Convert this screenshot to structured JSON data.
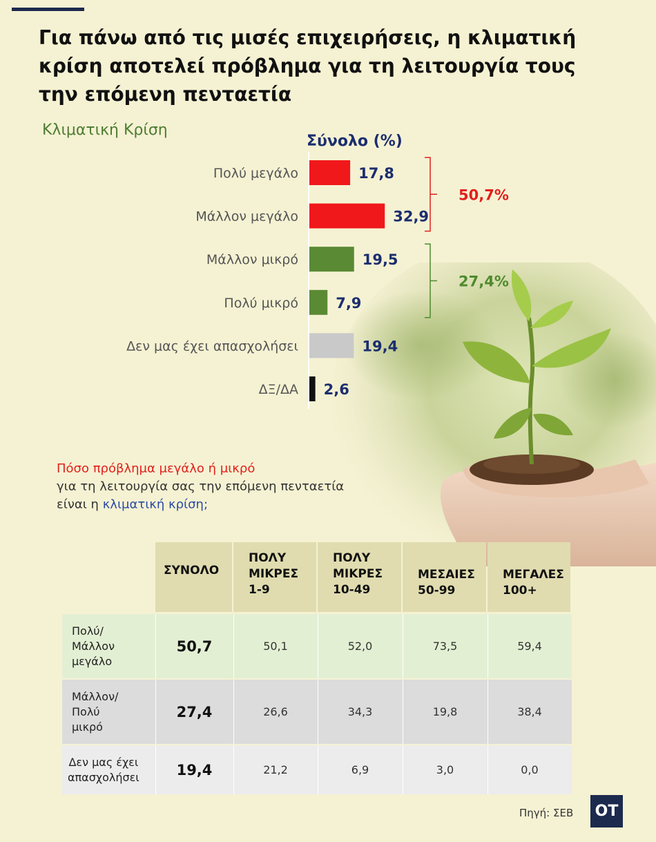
{
  "headline": "Για πάνω από τις μισές επιχειρήσεις, η κλιματική κρίση αποτελεί πρόβλημα για τη λειτουργία τους την επόμενη πενταετία",
  "section_title": "Κλιματική Κρίση",
  "total_title": "Σύνολο  (%)",
  "chart_data": {
    "type": "bar",
    "orientation": "horizontal",
    "title": "Σύνολο  (%)",
    "categories": [
      "Πολύ μεγάλο",
      "Μάλλον μεγάλο",
      "Μάλλον μικρό",
      "Πολύ μικρό",
      "Δεν μας έχει απασχολήσει",
      "ΔΞ/ΔΑ"
    ],
    "values": [
      17.8,
      32.9,
      19.5,
      7.9,
      19.4,
      2.6
    ],
    "value_labels": [
      "17,8",
      "32,9",
      "19,5",
      "7,9",
      "19,4",
      "2,6"
    ],
    "bar_colors": [
      "#f0181a",
      "#f0181a",
      "#5a8a34",
      "#5a8a34",
      "#c9c9c9",
      "#111111"
    ],
    "groups": [
      {
        "label": "50,7%",
        "members": [
          0,
          1
        ],
        "color": "#e2201c"
      },
      {
        "label": "27,4%",
        "members": [
          2,
          3
        ],
        "color": "#4e8a2e"
      }
    ],
    "xlim": [
      0,
      40
    ]
  },
  "question": {
    "line1": "Πόσο πρόβλημα μεγάλο ή μικρό",
    "line2": "για τη λειτουργία σας την επόμενη πενταετία",
    "line3_prefix": "είναι η ",
    "line3_highlight": "κλιματική κρίση;"
  },
  "table": {
    "headers": [
      [
        "ΣΥΝΟΛΟ"
      ],
      [
        "ΠΟΛΥ",
        "ΜΙΚΡΕΣ",
        "1-9"
      ],
      [
        "ΠΟΛΥ",
        "ΜΙΚΡΕΣ",
        "10-49"
      ],
      [
        "ΜΕΣΑΙΕΣ",
        "50-99"
      ],
      [
        "ΜΕΓΑΛΕΣ",
        "100+"
      ]
    ],
    "rows": [
      {
        "label": [
          "Πολύ/",
          "Μάλλον",
          "μεγάλο"
        ],
        "total": "50,7",
        "values": [
          "50,1",
          "52,0",
          "73,5",
          "59,4"
        ],
        "bg": "#e3efd3"
      },
      {
        "label": [
          "Μάλλον/",
          "Πολύ",
          "μικρό"
        ],
        "total": "27,4",
        "values": [
          "26,6",
          "34,3",
          "19,8",
          "38,4"
        ],
        "bg": "#dcdcdc"
      },
      {
        "label": [
          "Δεν μας έχει",
          "απασχολήσει"
        ],
        "total": "19,4",
        "values": [
          "21,2",
          "6,9",
          "3,0",
          "0,0"
        ],
        "bg": "#ececec"
      }
    ]
  },
  "source": "Πηγή: ΣΕΒ",
  "logo": "OT",
  "icons": [
    "plant-seedling-icon"
  ]
}
